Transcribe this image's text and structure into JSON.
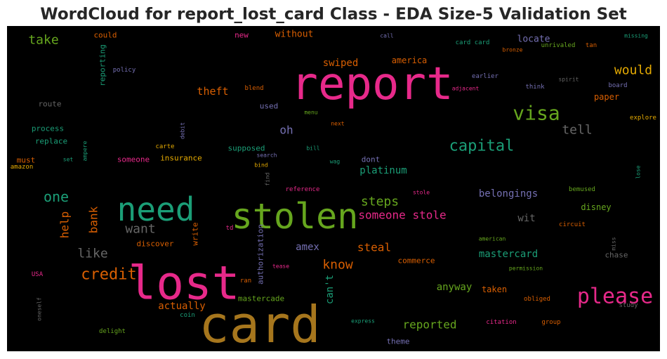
{
  "chart_data": {
    "type": "wordcloud",
    "title": "WordCloud for report_lost_card Class - EDA Size-5 Validation Set",
    "background": "#000000",
    "words": [
      {
        "text": "report",
        "color": "#e7298a"
      },
      {
        "text": "card",
        "color": "#a6761d"
      },
      {
        "text": "lost",
        "color": "#e7298a"
      },
      {
        "text": "stolen",
        "color": "#66a61e"
      },
      {
        "text": "need",
        "color": "#1b9e77"
      },
      {
        "text": "visa",
        "color": "#66a61e"
      },
      {
        "text": "please",
        "color": "#e7298a"
      },
      {
        "text": "capital",
        "color": "#1b9e77"
      },
      {
        "text": "would",
        "color": "#e6ab02"
      },
      {
        "text": "tell",
        "color": "#666666"
      },
      {
        "text": "take",
        "color": "#66a61e"
      },
      {
        "text": "one",
        "color": "#1b9e77"
      },
      {
        "text": "credit",
        "color": "#d95f02"
      },
      {
        "text": "want",
        "color": "#666666"
      },
      {
        "text": "like",
        "color": "#666666"
      },
      {
        "text": "help",
        "color": "#d95f02"
      },
      {
        "text": "bank",
        "color": "#d95f02"
      },
      {
        "text": "steps",
        "color": "#66a61e"
      },
      {
        "text": "someone stole",
        "color": "#e7298a"
      },
      {
        "text": "steal",
        "color": "#d95f02"
      },
      {
        "text": "know",
        "color": "#d95f02"
      },
      {
        "text": "platinum",
        "color": "#1b9e77"
      },
      {
        "text": "belongings",
        "color": "#7570b3"
      },
      {
        "text": "swiped",
        "color": "#d95f02"
      },
      {
        "text": "america",
        "color": "#d95f02"
      },
      {
        "text": "theft",
        "color": "#d95f02"
      },
      {
        "text": "oh",
        "color": "#7570b3"
      },
      {
        "text": "mastercard",
        "color": "#1b9e77"
      },
      {
        "text": "reported",
        "color": "#66a61e"
      },
      {
        "text": "anyway",
        "color": "#66a61e"
      },
      {
        "text": "actually",
        "color": "#d95f02"
      },
      {
        "text": "amex",
        "color": "#7570b3"
      },
      {
        "text": "can't",
        "color": "#1b9e77"
      },
      {
        "text": "commerce",
        "color": "#d95f02"
      },
      {
        "text": "taken",
        "color": "#d95f02"
      },
      {
        "text": "wit",
        "color": "#666666"
      },
      {
        "text": "disney",
        "color": "#66a61e"
      },
      {
        "text": "locate",
        "color": "#7570b3"
      },
      {
        "text": "paper",
        "color": "#d95f02"
      },
      {
        "text": "without",
        "color": "#d95f02"
      },
      {
        "text": "could",
        "color": "#d95f02"
      },
      {
        "text": "new",
        "color": "#e7298a"
      },
      {
        "text": "reporting",
        "color": "#1b9e77"
      },
      {
        "text": "policy",
        "color": "#7570b3"
      },
      {
        "text": "route",
        "color": "#666666"
      },
      {
        "text": "process",
        "color": "#1b9e77"
      },
      {
        "text": "replace",
        "color": "#1b9e77"
      },
      {
        "text": "must",
        "color": "#d95f02"
      },
      {
        "text": "amazon",
        "color": "#e6ab02"
      },
      {
        "text": "set",
        "color": "#1b9e77"
      },
      {
        "text": "ampere",
        "color": "#1b9e77"
      },
      {
        "text": "carte",
        "color": "#e6ab02"
      },
      {
        "text": "debit",
        "color": "#7570b3"
      },
      {
        "text": "insurance",
        "color": "#e6ab02"
      },
      {
        "text": "someone",
        "color": "#e7298a"
      },
      {
        "text": "supposed",
        "color": "#1b9e77"
      },
      {
        "text": "search",
        "color": "#7570b3"
      },
      {
        "text": "bind",
        "color": "#e6ab02"
      },
      {
        "text": "find",
        "color": "#666666"
      },
      {
        "text": "used",
        "color": "#7570b3"
      },
      {
        "text": "blend",
        "color": "#d95f02"
      },
      {
        "text": "menu",
        "color": "#66a61e"
      },
      {
        "text": "next",
        "color": "#d95f02"
      },
      {
        "text": "bill",
        "color": "#1b9e77"
      },
      {
        "text": "wag",
        "color": "#1b9e77"
      },
      {
        "text": "dont",
        "color": "#7570b3"
      },
      {
        "text": "reference",
        "color": "#e7298a"
      },
      {
        "text": "stole",
        "color": "#e7298a"
      },
      {
        "text": "call",
        "color": "#7570b3"
      },
      {
        "text": "card card",
        "color": "#1b9e77"
      },
      {
        "text": "bronze",
        "color": "#d95f02"
      },
      {
        "text": "unrivaled",
        "color": "#66a61e"
      },
      {
        "text": "tan",
        "color": "#d95f02"
      },
      {
        "text": "missing",
        "color": "#1b9e77"
      },
      {
        "text": "earlier",
        "color": "#7570b3"
      },
      {
        "text": "adjacent",
        "color": "#e7298a"
      },
      {
        "text": "think",
        "color": "#7570b3"
      },
      {
        "text": "spirit",
        "color": "#666666"
      },
      {
        "text": "board",
        "color": "#7570b3"
      },
      {
        "text": "explore",
        "color": "#e6ab02"
      },
      {
        "text": "lose",
        "color": "#1b9e77"
      },
      {
        "text": "bemused",
        "color": "#66a61e"
      },
      {
        "text": "circuit",
        "color": "#d95f02"
      },
      {
        "text": "miss",
        "color": "#666666"
      },
      {
        "text": "chase",
        "color": "#666666"
      },
      {
        "text": "american",
        "color": "#66a61e"
      },
      {
        "text": "permission",
        "color": "#66a61e"
      },
      {
        "text": "obliged",
        "color": "#d95f02"
      },
      {
        "text": "study",
        "color": "#666666"
      },
      {
        "text": "group",
        "color": "#d95f02"
      },
      {
        "text": "citation",
        "color": "#e7298a"
      },
      {
        "text": "theme",
        "color": "#7570b3"
      },
      {
        "text": "express",
        "color": "#1b9e77"
      },
      {
        "text": "write",
        "color": "#d95f02"
      },
      {
        "text": "td",
        "color": "#e7298a"
      },
      {
        "text": "discover",
        "color": "#d95f02"
      },
      {
        "text": "authorization",
        "color": "#7570b3"
      },
      {
        "text": "tease",
        "color": "#e7298a"
      },
      {
        "text": "ran",
        "color": "#d95f02"
      },
      {
        "text": "mastercade",
        "color": "#66a61e"
      },
      {
        "text": "coin",
        "color": "#1b9e77"
      },
      {
        "text": "delight",
        "color": "#66a61e"
      },
      {
        "text": "oneself",
        "color": "#666666"
      },
      {
        "text": "USA",
        "color": "#e7298a"
      }
    ]
  }
}
